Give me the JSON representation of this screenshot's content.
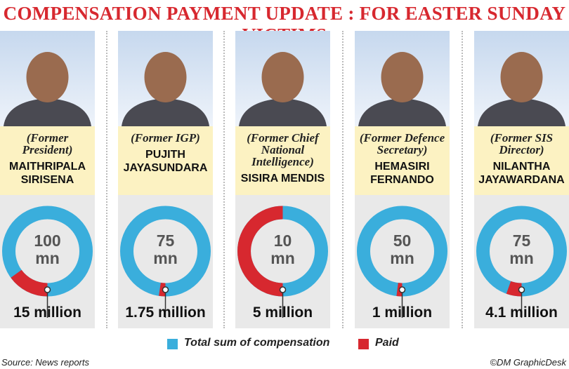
{
  "title": "COMPENSATION PAYMENT UPDATE : FOR EASTER SUNDAY VICTIMS",
  "source": "Source: News reports",
  "credit": "©DM GraphicDesk",
  "chart_data": [
    {
      "type": "donut",
      "title": "(Former President)",
      "name": "MAITHRIPALA SIRISENA",
      "series": [
        {
          "name": "Total sum of compensation",
          "color": "#3aaedc",
          "values": [
            100
          ],
          "value_labels": [
            "100 mn"
          ]
        },
        {
          "name": "Paid",
          "color": "#d7282f",
          "values": [
            15
          ],
          "value_labels": [
            "15 million"
          ]
        }
      ]
    },
    {
      "type": "donut",
      "title": "(Former IGP)",
      "name": "PUJITH JAYASUNDARA",
      "series": [
        {
          "name": "Total sum of compensation",
          "color": "#3aaedc",
          "values": [
            75
          ],
          "value_labels": [
            "75 mn"
          ]
        },
        {
          "name": "Paid",
          "color": "#d7282f",
          "values": [
            1.75
          ],
          "value_labels": [
            "1.75 million"
          ]
        }
      ]
    },
    {
      "type": "donut",
      "title": "(Former Chief National Intelligence)",
      "name": "SISIRA MENDIS",
      "series": [
        {
          "name": "Total sum of compensation",
          "color": "#3aaedc",
          "values": [
            10
          ],
          "value_labels": [
            "10 mn"
          ]
        },
        {
          "name": "Paid",
          "color": "#d7282f",
          "values": [
            5
          ],
          "value_labels": [
            "5 million"
          ]
        }
      ]
    },
    {
      "type": "donut",
      "title": "(Former Defence Secretary)",
      "name": "HEMASIRI FERNANDO",
      "series": [
        {
          "name": "Total sum of compensation",
          "color": "#3aaedc",
          "values": [
            50
          ],
          "value_labels": [
            "50 mn"
          ]
        },
        {
          "name": "Paid",
          "color": "#d7282f",
          "values": [
            1
          ],
          "value_labels": [
            "1 million"
          ]
        }
      ]
    },
    {
      "type": "donut",
      "title": "(Former SIS Director)",
      "name": "NILANTHA JAYAWARDANA",
      "series": [
        {
          "name": "Total sum of compensation",
          "color": "#3aaedc",
          "values": [
            75
          ],
          "value_labels": [
            "75 mn"
          ]
        },
        {
          "name": "Paid",
          "color": "#d7282f",
          "values": [
            4.1
          ],
          "value_labels": [
            "4.1 million"
          ]
        }
      ]
    }
  ]
}
